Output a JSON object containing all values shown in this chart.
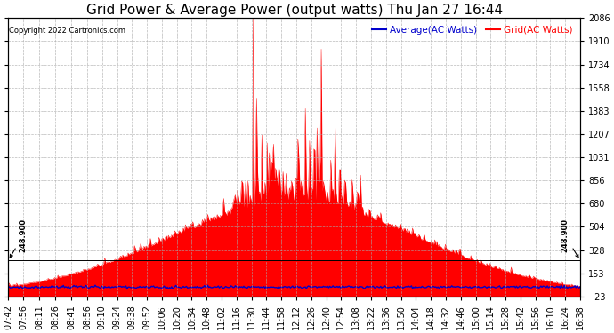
{
  "title": "Grid Power & Average Power (output watts) Thu Jan 27 16:44",
  "copyright": "Copyright 2022 Cartronics.com",
  "legend_avg": "Average(AC Watts)",
  "legend_grid": "Grid(AC Watts)",
  "ymin": -23.0,
  "ymax": 2085.5,
  "yticks": [
    2085.5,
    1909.8,
    1734.1,
    1558.4,
    1382.7,
    1207.0,
    1031.3,
    855.5,
    679.8,
    504.1,
    328.4,
    152.7,
    -23.0
  ],
  "hline_value": 248.9,
  "hline_label": "248.900",
  "avg_color": "#0000cc",
  "grid_color": "#ff0000",
  "background_color": "#ffffff",
  "title_fontsize": 11,
  "tick_fontsize": 7,
  "avg_line_y": 50,
  "tick_times_str": [
    "07:42",
    "07:56",
    "08:11",
    "08:26",
    "08:41",
    "08:56",
    "09:10",
    "09:24",
    "09:38",
    "09:52",
    "10:06",
    "10:20",
    "10:34",
    "10:48",
    "11:02",
    "11:16",
    "11:30",
    "11:44",
    "11:58",
    "12:12",
    "12:26",
    "12:40",
    "12:54",
    "13:08",
    "13:22",
    "13:36",
    "13:50",
    "14:04",
    "14:18",
    "14:32",
    "14:46",
    "15:00",
    "15:14",
    "15:28",
    "15:42",
    "15:56",
    "16:10",
    "16:24",
    "16:38"
  ]
}
